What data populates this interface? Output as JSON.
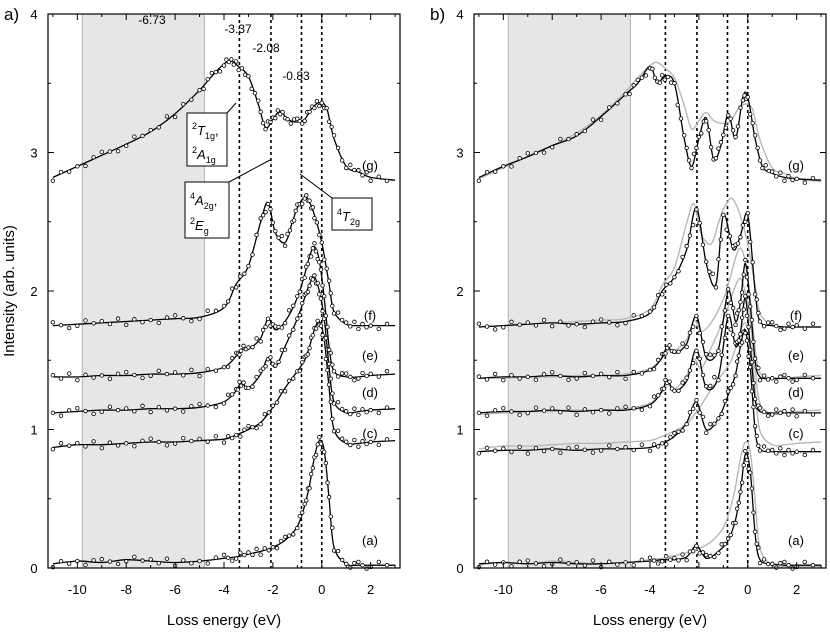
{
  "chart_data": [
    {
      "type": "scatter",
      "panel_label": "a)",
      "xlabel": "Loss energy (eV)",
      "ylabel": "Intensity (arb. units)",
      "xlim": [
        -11.2,
        3.2
      ],
      "ylim": [
        0,
        4
      ],
      "xticks": [
        "-10",
        "-8",
        "-6",
        "-4",
        "-2",
        "0",
        "2"
      ],
      "yticks": [
        "0",
        "1",
        "2",
        "3",
        "4"
      ],
      "shaded_region": [
        -9.8,
        -4.8
      ],
      "vlines": [
        -3.37,
        -2.08,
        -0.83,
        0
      ],
      "energy_labels": [
        "-6.73",
        "-3.37",
        "-2.08",
        "-0.83"
      ],
      "term_labels": {
        "box1_line1": "T",
        "box1_line1_sup": "2",
        "box1_line1_sub": "1g",
        "box1_line1_sep": ",",
        "box1_line2": "A",
        "box1_line2_sup": "2",
        "box1_line2_sub": "1g",
        "box2_line1": "A",
        "box2_line1_sup": "4",
        "box2_line1_sub": "2g",
        "box2_line1_sep": ",",
        "box2_line2": "E",
        "box2_line2_sup": "2",
        "box2_line2_sub": "g",
        "box3": "T",
        "box3_sup": "4",
        "box3_sub": "2g"
      },
      "series": [
        {
          "name": "(a)",
          "x": [
            -11,
            -10,
            -9,
            -8,
            -7,
            -6,
            -5,
            -4,
            -3.5,
            -3,
            -2.5,
            -2,
            -1.5,
            -1,
            -0.7,
            -0.5,
            -0.3,
            -0.1,
            0.1,
            0.3,
            0.5,
            1,
            1.5,
            2,
            3
          ],
          "y": [
            0.03,
            0.05,
            0.04,
            0.06,
            0.05,
            0.04,
            0.05,
            0.07,
            0.08,
            0.1,
            0.12,
            0.15,
            0.2,
            0.3,
            0.45,
            0.6,
            0.8,
            0.92,
            0.85,
            0.5,
            0.15,
            0.03,
            0.02,
            0.02,
            0.02
          ]
        },
        {
          "name": "(c)",
          "x": [
            -11,
            -10,
            -9,
            -8,
            -7,
            -6,
            -5,
            -4,
            -3.5,
            -3,
            -2.5,
            -2,
            -1.5,
            -1,
            -0.7,
            -0.5,
            -0.3,
            -0.1,
            0.1,
            0.3,
            0.5,
            1,
            1.5,
            2,
            3
          ],
          "y": [
            0.87,
            0.89,
            0.89,
            0.9,
            0.91,
            0.91,
            0.92,
            0.93,
            0.96,
            1.0,
            1.05,
            1.16,
            1.3,
            1.42,
            1.5,
            1.6,
            1.72,
            1.78,
            1.65,
            1.3,
            1.0,
            0.9,
            0.9,
            0.91,
            0.92
          ]
        },
        {
          "name": "(d)",
          "x": [
            -11,
            -10,
            -9,
            -8,
            -7,
            -6,
            -5,
            -4,
            -3.5,
            -3.3,
            -3,
            -2.5,
            -2.2,
            -1.9,
            -1.5,
            -1,
            -0.7,
            -0.5,
            -0.3,
            -0.1,
            0.1,
            0.3,
            0.5,
            1,
            1.5,
            2,
            3
          ],
          "y": [
            1.12,
            1.13,
            1.14,
            1.14,
            1.15,
            1.15,
            1.16,
            1.2,
            1.28,
            1.34,
            1.3,
            1.4,
            1.52,
            1.45,
            1.6,
            1.8,
            1.95,
            2.05,
            2.1,
            2.0,
            1.8,
            1.45,
            1.2,
            1.12,
            1.13,
            1.14,
            1.15
          ]
        },
        {
          "name": "(e)",
          "x": [
            -11,
            -10,
            -9,
            -8,
            -7,
            -6,
            -5,
            -4,
            -3.5,
            -3.3,
            -3,
            -2.5,
            -2.2,
            -1.9,
            -1.5,
            -1,
            -0.7,
            -0.5,
            -0.3,
            -0.1,
            0.1,
            0.3,
            0.5,
            1,
            1.5,
            2,
            3
          ],
          "y": [
            1.38,
            1.38,
            1.39,
            1.39,
            1.4,
            1.4,
            1.41,
            1.45,
            1.53,
            1.58,
            1.58,
            1.66,
            1.8,
            1.72,
            1.78,
            1.95,
            2.12,
            2.25,
            2.32,
            2.22,
            1.95,
            1.6,
            1.42,
            1.38,
            1.38,
            1.39,
            1.4
          ]
        },
        {
          "name": "(f)",
          "x": [
            -11,
            -10,
            -9,
            -8,
            -7,
            -6,
            -5,
            -4,
            -3.5,
            -3,
            -2.5,
            -2.2,
            -1.9,
            -1.5,
            -1.2,
            -1,
            -0.7,
            -0.5,
            -0.3,
            0,
            0.3,
            0.5,
            1,
            1.5,
            2,
            3
          ],
          "y": [
            1.75,
            1.76,
            1.77,
            1.78,
            1.79,
            1.8,
            1.81,
            1.88,
            2.05,
            2.18,
            2.5,
            2.64,
            2.42,
            2.35,
            2.5,
            2.6,
            2.68,
            2.64,
            2.55,
            2.35,
            2.05,
            1.85,
            1.76,
            1.75,
            1.75,
            1.75
          ]
        },
        {
          "name": "(g)",
          "x": [
            -11,
            -10,
            -9,
            -8,
            -7,
            -6,
            -5,
            -4.5,
            -4,
            -3.7,
            -3.4,
            -3,
            -2.6,
            -2.3,
            -2,
            -1.7,
            -1.4,
            -1,
            -0.7,
            -0.4,
            -0.1,
            0.2,
            0.5,
            1,
            1.5,
            2,
            3
          ],
          "y": [
            2.82,
            2.9,
            2.98,
            3.06,
            3.15,
            3.28,
            3.45,
            3.55,
            3.64,
            3.66,
            3.62,
            3.55,
            3.35,
            3.18,
            3.24,
            3.3,
            3.24,
            3.22,
            3.24,
            3.32,
            3.36,
            3.32,
            3.1,
            2.9,
            2.86,
            2.82,
            2.8
          ]
        }
      ]
    },
    {
      "type": "scatter",
      "panel_label": "b)",
      "xlabel": "Loss energy (eV)",
      "xlim": [
        -11.2,
        3.2
      ],
      "ylim": [
        0,
        4
      ],
      "xticks": [
        "-10",
        "-8",
        "-6",
        "-4",
        "-2",
        "0",
        "2"
      ],
      "yticks": [
        "0",
        "1",
        "2",
        "3",
        "4"
      ],
      "shaded_region": [
        -9.8,
        -4.8
      ],
      "vlines": [
        -3.37,
        -2.08,
        -0.83,
        0
      ],
      "series": [
        {
          "name": "(a)",
          "x": [
            -11,
            -10,
            -9,
            -8,
            -7,
            -6,
            -5,
            -4,
            -3.5,
            -3,
            -2.5,
            -2.1,
            -1.7,
            -1.2,
            -0.8,
            -0.5,
            -0.3,
            -0.1,
            0.1,
            0.3,
            0.5,
            1,
            1.5,
            2,
            3
          ],
          "y": [
            0.03,
            0.04,
            0.03,
            0.04,
            0.03,
            0.03,
            0.04,
            0.05,
            0.06,
            0.06,
            0.08,
            0.16,
            0.07,
            0.12,
            0.2,
            0.35,
            0.55,
            0.82,
            0.7,
            0.25,
            0.06,
            0.03,
            0.02,
            0.02,
            0.02
          ]
        },
        {
          "name": "(c)",
          "x": [
            -11,
            -10,
            -9,
            -8,
            -7,
            -6,
            -5,
            -4,
            -3.5,
            -3,
            -2.5,
            -2.1,
            -1.7,
            -1.2,
            -0.8,
            -0.5,
            -0.3,
            -0.1,
            0.1,
            0.3,
            0.5,
            1,
            1.5,
            2,
            3
          ],
          "y": [
            0.84,
            0.85,
            0.85,
            0.86,
            0.85,
            0.86,
            0.86,
            0.87,
            0.9,
            0.95,
            1.05,
            1.2,
            1.0,
            1.08,
            1.25,
            1.4,
            1.6,
            1.72,
            1.45,
            1.0,
            0.86,
            0.84,
            0.84,
            0.84,
            0.84
          ]
        },
        {
          "name": "(d)",
          "x": [
            -11,
            -10,
            -9,
            -8,
            -7,
            -6,
            -5,
            -4,
            -3.5,
            -3.3,
            -3,
            -2.5,
            -2.1,
            -1.7,
            -1.2,
            -0.8,
            -0.5,
            -0.3,
            -0.1,
            0.1,
            0.3,
            0.5,
            1,
            1.5,
            2,
            3
          ],
          "y": [
            1.12,
            1.13,
            1.13,
            1.14,
            1.13,
            1.14,
            1.14,
            1.18,
            1.28,
            1.36,
            1.28,
            1.35,
            1.58,
            1.3,
            1.38,
            1.82,
            1.6,
            1.7,
            1.95,
            1.6,
            1.22,
            1.13,
            1.12,
            1.12,
            1.12,
            1.12
          ]
        },
        {
          "name": "(e)",
          "x": [
            -11,
            -10,
            -9,
            -8,
            -7,
            -6,
            -5,
            -4,
            -3.5,
            -3.3,
            -3,
            -2.5,
            -2.1,
            -1.7,
            -1.2,
            -0.8,
            -0.5,
            -0.3,
            -0.1,
            0.1,
            0.3,
            0.5,
            1,
            1.5,
            2,
            3
          ],
          "y": [
            1.37,
            1.38,
            1.38,
            1.39,
            1.38,
            1.39,
            1.39,
            1.43,
            1.52,
            1.6,
            1.55,
            1.62,
            1.82,
            1.52,
            1.58,
            2.0,
            1.78,
            1.92,
            2.2,
            1.9,
            1.5,
            1.38,
            1.37,
            1.37,
            1.37,
            1.37
          ]
        },
        {
          "name": "(f)",
          "x": [
            -11,
            -10,
            -9,
            -8,
            -7,
            -6,
            -5,
            -4,
            -3.5,
            -3,
            -2.5,
            -2.1,
            -1.7,
            -1.3,
            -1,
            -0.6,
            -0.3,
            0,
            0.3,
            0.5,
            1,
            1.5,
            2,
            3
          ],
          "y": [
            1.74,
            1.75,
            1.76,
            1.77,
            1.76,
            1.77,
            1.78,
            1.84,
            2.0,
            2.1,
            2.3,
            2.6,
            2.2,
            2.05,
            2.55,
            2.3,
            2.4,
            2.55,
            2.0,
            1.78,
            1.75,
            1.74,
            1.74,
            1.74
          ]
        },
        {
          "name": "(g)",
          "x": [
            -11,
            -10,
            -9,
            -8,
            -7,
            -6,
            -5,
            -4.5,
            -4,
            -3.7,
            -3.4,
            -3,
            -2.6,
            -2.3,
            -2,
            -1.7,
            -1.4,
            -1.1,
            -0.8,
            -0.5,
            -0.2,
            0,
            0.3,
            0.6,
            1,
            1.5,
            2,
            3
          ],
          "y": [
            2.82,
            2.9,
            2.97,
            3.05,
            3.12,
            3.26,
            3.42,
            3.5,
            3.62,
            3.5,
            3.55,
            3.5,
            3.1,
            2.9,
            3.1,
            3.25,
            2.95,
            3.05,
            3.28,
            3.1,
            3.4,
            3.4,
            3.1,
            2.9,
            2.85,
            2.82,
            2.81,
            2.8
          ]
        }
      ]
    }
  ]
}
